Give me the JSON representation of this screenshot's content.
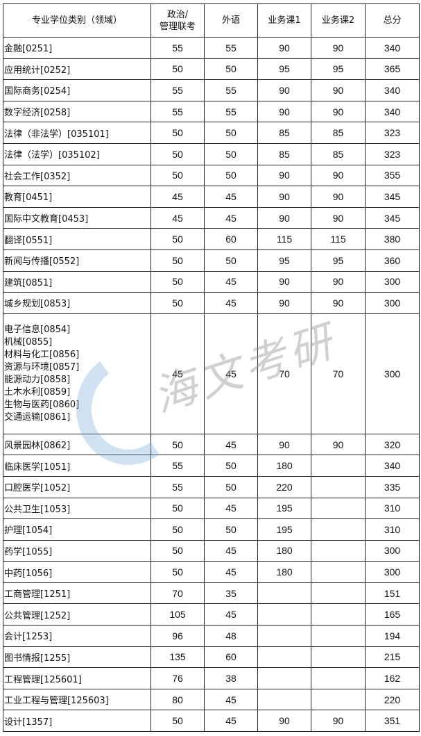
{
  "headers": [
    "专业学位类别（领域）",
    "政治/\n管理联考",
    "外语",
    "业务课1",
    "业务课2",
    "总分"
  ],
  "rows": [
    {
      "name": [
        "金融[0251]"
      ],
      "values": [
        "55",
        "55",
        "90",
        "90",
        "340"
      ]
    },
    {
      "name": [
        "应用统计[0252]"
      ],
      "values": [
        "50",
        "50",
        "95",
        "95",
        "365"
      ]
    },
    {
      "name": [
        "国际商务[0254]"
      ],
      "values": [
        "55",
        "55",
        "90",
        "90",
        "340"
      ]
    },
    {
      "name": [
        "数字经济[0258]"
      ],
      "values": [
        "55",
        "55",
        "90",
        "90",
        "340"
      ]
    },
    {
      "name": [
        "法律（非法学）[035101]"
      ],
      "values": [
        "50",
        "50",
        "85",
        "85",
        "323"
      ]
    },
    {
      "name": [
        "法律（法学）[035102]"
      ],
      "values": [
        "50",
        "50",
        "85",
        "85",
        "323"
      ]
    },
    {
      "name": [
        "社会工作[0352]"
      ],
      "values": [
        "50",
        "50",
        "90",
        "90",
        "355"
      ]
    },
    {
      "name": [
        "教育[0451]"
      ],
      "values": [
        "45",
        "45",
        "90",
        "90",
        "345"
      ]
    },
    {
      "name": [
        "国际中文教育[0453]"
      ],
      "values": [
        "45",
        "45",
        "90",
        "90",
        "345"
      ]
    },
    {
      "name": [
        "翻译[0551]"
      ],
      "values": [
        "50",
        "60",
        "115",
        "115",
        "380"
      ]
    },
    {
      "name": [
        "新闻与传播[0552]"
      ],
      "values": [
        "50",
        "50",
        "95",
        "95",
        "360"
      ]
    },
    {
      "name": [
        "建筑[0851]"
      ],
      "values": [
        "50",
        "45",
        "90",
        "90",
        "300"
      ]
    },
    {
      "name": [
        "城乡规划[0853]"
      ],
      "values": [
        "50",
        "45",
        "90",
        "90",
        "300"
      ]
    },
    {
      "name": [
        "电子信息[0854]",
        "机械[0855]",
        "材料与化工[0856]",
        "资源与环境[0857]",
        "能源动力[0858]",
        "土木水利[0859]",
        "生物与医药[0860]",
        "交通运输[0861]"
      ],
      "values": [
        "45",
        "45",
        "70",
        "70",
        "300"
      ]
    },
    {
      "name": [
        "风景园林[0862]"
      ],
      "values": [
        "50",
        "45",
        "90",
        "90",
        "320"
      ]
    },
    {
      "name": [
        "临床医学[1051]"
      ],
      "values": [
        "55",
        "50",
        "180",
        "",
        "340"
      ]
    },
    {
      "name": [
        "口腔医学[1052]"
      ],
      "values": [
        "55",
        "50",
        "220",
        "",
        "335"
      ]
    },
    {
      "name": [
        "公共卫生[1053]"
      ],
      "values": [
        "50",
        "45",
        "195",
        "",
        "310"
      ]
    },
    {
      "name": [
        "护理[1054]"
      ],
      "values": [
        "50",
        "50",
        "195",
        "",
        "310"
      ]
    },
    {
      "name": [
        "药学[1055]"
      ],
      "values": [
        "50",
        "45",
        "180",
        "",
        "300"
      ]
    },
    {
      "name": [
        "中药[1056]"
      ],
      "values": [
        "50",
        "45",
        "180",
        "",
        "300"
      ]
    },
    {
      "name": [
        "工商管理[1251]"
      ],
      "values": [
        "70",
        "35",
        "",
        "",
        "151"
      ]
    },
    {
      "name": [
        "公共管理[1252]"
      ],
      "values": [
        "105",
        "45",
        "",
        "",
        "165"
      ]
    },
    {
      "name": [
        "会计[1253]"
      ],
      "values": [
        "96",
        "48",
        "",
        "",
        "194"
      ]
    },
    {
      "name": [
        "图书情报[1255]"
      ],
      "values": [
        "135",
        "60",
        "",
        "",
        "215"
      ]
    },
    {
      "name": [
        "工程管理[125601]"
      ],
      "values": [
        "76",
        "38",
        "",
        "",
        "162"
      ]
    },
    {
      "name": [
        "工业工程与管理[125603]"
      ],
      "values": [
        "80",
        "45",
        "",
        "",
        "220"
      ]
    },
    {
      "name": [
        "设计[1357]"
      ],
      "values": [
        "50",
        "45",
        "90",
        "90",
        "351"
      ]
    }
  ],
  "watermark": {
    "text": "海文考研",
    "logo_color": "#78aad7"
  }
}
